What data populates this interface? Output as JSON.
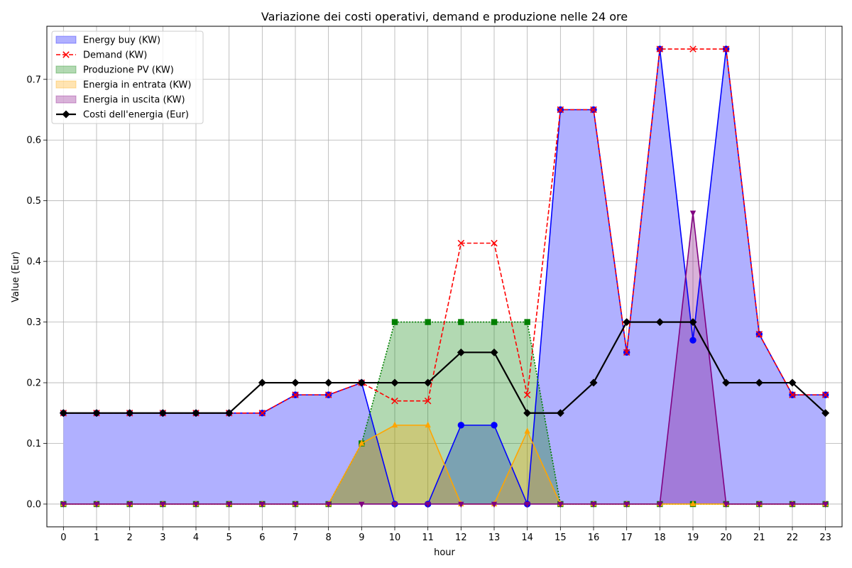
{
  "chart_data": {
    "type": "area",
    "title": "Variazione dei costi operativi, demand e produzione nelle 24 ore",
    "xlabel": "hour",
    "ylabel": "Value (Eur)",
    "x": [
      0,
      1,
      2,
      3,
      4,
      5,
      6,
      7,
      8,
      9,
      10,
      11,
      12,
      13,
      14,
      15,
      16,
      17,
      18,
      19,
      20,
      21,
      22,
      23
    ],
    "xlim": [
      -0.5,
      23.5
    ],
    "ylim": [
      -0.0375,
      0.7875
    ],
    "yticks": [
      0.0,
      0.1,
      0.2,
      0.3,
      0.4,
      0.5,
      0.6,
      0.7
    ],
    "ytick_labels": [
      "0.0",
      "0.1",
      "0.2",
      "0.3",
      "0.4",
      "0.5",
      "0.6",
      "0.7"
    ],
    "grid": true,
    "legend_position": "top-left",
    "series": [
      {
        "name": "Energy buy (KW)",
        "style": "area",
        "color": "#0000ff",
        "fill": "#b0b0ff",
        "marker": "circle",
        "values": [
          0.15,
          0.15,
          0.15,
          0.15,
          0.15,
          0.15,
          0.15,
          0.18,
          0.18,
          0.2,
          0.0,
          0.0,
          0.13,
          0.13,
          0.0,
          0.65,
          0.65,
          0.25,
          0.75,
          0.27,
          0.75,
          0.28,
          0.18,
          0.18
        ]
      },
      {
        "name": "Demand (KW)",
        "style": "dashed-line",
        "color": "#ff0000",
        "marker": "x",
        "values": [
          0.15,
          0.15,
          0.15,
          0.15,
          0.15,
          0.15,
          0.15,
          0.18,
          0.18,
          0.2,
          0.17,
          0.17,
          0.43,
          0.43,
          0.18,
          0.65,
          0.65,
          0.25,
          0.75,
          0.75,
          0.75,
          0.28,
          0.18,
          0.18
        ]
      },
      {
        "name": "Produzione PV (KW)",
        "style": "area-dotted",
        "color": "#007f00",
        "fill": "rgba(0,128,0,0.3)",
        "marker": "square",
        "values": [
          0,
          0,
          0,
          0,
          0,
          0,
          0,
          0,
          0,
          0.1,
          0.3,
          0.3,
          0.3,
          0.3,
          0.3,
          0,
          0,
          0,
          0,
          0,
          0,
          0,
          0,
          0
        ]
      },
      {
        "name": "Energia in entrata (KW)",
        "style": "area",
        "color": "#ffa500",
        "fill": "rgba(255,165,0,0.3)",
        "marker": "triangle-up",
        "values": [
          0,
          0,
          0,
          0,
          0,
          0,
          0,
          0,
          0,
          0.1,
          0.13,
          0.13,
          0,
          0,
          0.12,
          0,
          0,
          0,
          0,
          0,
          0,
          0,
          0,
          0
        ]
      },
      {
        "name": "Energia in uscita (KW)",
        "style": "area",
        "color": "#800080",
        "fill": "rgba(128,0,128,0.3)",
        "marker": "triangle-down",
        "values": [
          0,
          0,
          0,
          0,
          0,
          0,
          0,
          0,
          0,
          0,
          0,
          0,
          0,
          0,
          0,
          0,
          0,
          0,
          0,
          0.48,
          0,
          0,
          0,
          0
        ]
      },
      {
        "name": "Costi dell'energia (Eur)",
        "style": "line",
        "color": "#000000",
        "marker": "diamond",
        "values": [
          0.15,
          0.15,
          0.15,
          0.15,
          0.15,
          0.15,
          0.2,
          0.2,
          0.2,
          0.2,
          0.2,
          0.2,
          0.25,
          0.25,
          0.15,
          0.15,
          0.2,
          0.3,
          0.3,
          0.3,
          0.2,
          0.2,
          0.2,
          0.15
        ]
      }
    ]
  }
}
